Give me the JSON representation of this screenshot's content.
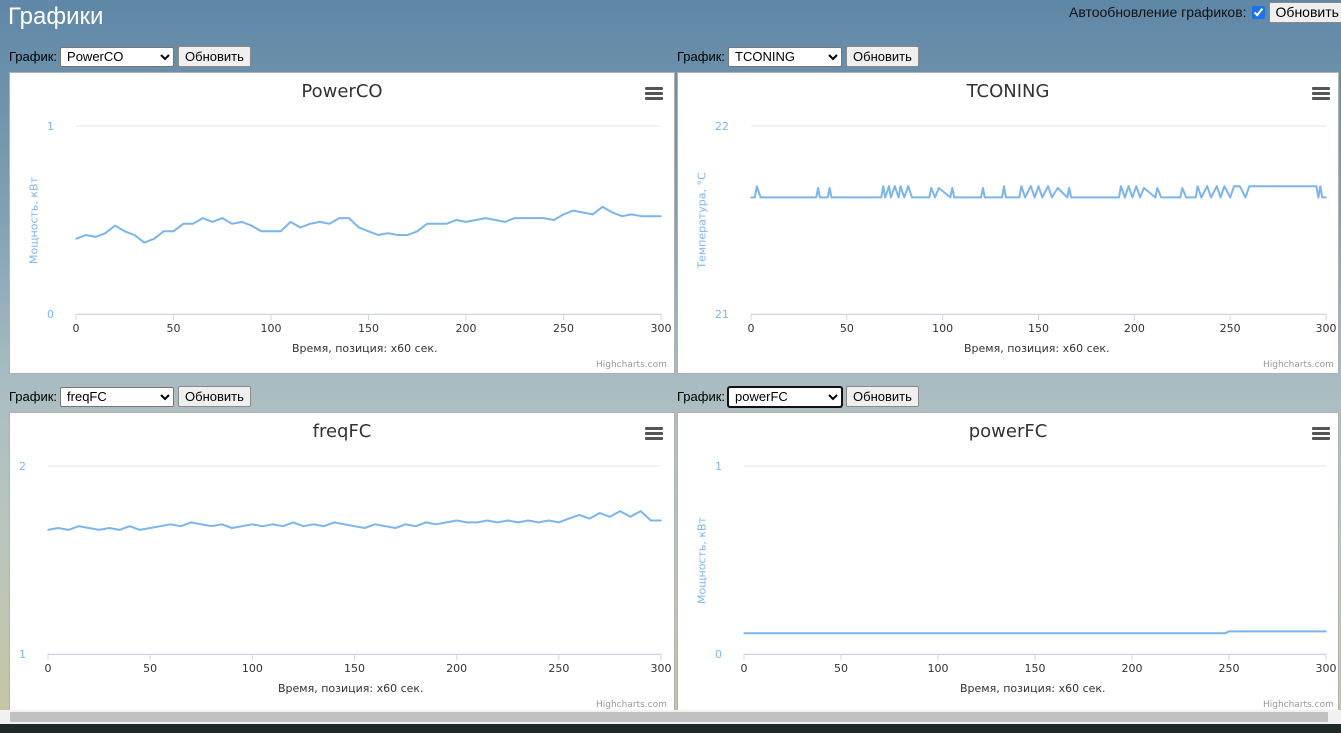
{
  "header": {
    "title": "Графики",
    "auto_label": "Автообновление графиков:",
    "auto_checked": true,
    "auto_button": "Обновить г"
  },
  "colors": {
    "series": "#7cb5ec",
    "grid": "#e6e6e6",
    "title": "#333333"
  },
  "credits": "Highcharts.com",
  "x_axis_title": "Время, позиция: x60 сек.",
  "panels": [
    {
      "control_label": "График:",
      "selected": "PowerCO",
      "button": "Обновить",
      "title": "PowerCO",
      "y_title": "Мощность, кВт",
      "menu_icon": "hamburger-menu-icon"
    },
    {
      "control_label": "График:",
      "selected": "TCONING",
      "button": "Обновить",
      "title": "TCONING",
      "y_title": "Температура, °C",
      "menu_icon": "hamburger-menu-icon"
    },
    {
      "control_label": "График:",
      "selected": "freqFC",
      "button": "Обновить",
      "title": "freqFC",
      "y_title": "",
      "menu_icon": "hamburger-menu-icon"
    },
    {
      "control_label": "График:",
      "selected": "powerFC",
      "button": "Обновить",
      "title": "powerFC",
      "y_title": "Мощность, кВт",
      "menu_icon": "hamburger-menu-icon"
    }
  ],
  "chart_data": [
    {
      "type": "line",
      "title": "PowerCO",
      "xlabel": "Время, позиция: x60 сек.",
      "ylabel": "Мощность, кВт",
      "xlim": [
        0,
        300
      ],
      "ylim": [
        0,
        1
      ],
      "x_ticks": [
        0,
        50,
        100,
        150,
        200,
        250,
        300
      ],
      "y_ticks": [
        0,
        1
      ],
      "grid": true,
      "legend": "none",
      "series": [
        {
          "x": [
            0,
            5,
            10,
            15,
            20,
            25,
            30,
            35,
            40,
            45,
            50,
            55,
            60,
            65,
            70,
            75,
            80,
            85,
            90,
            95,
            100,
            105,
            110,
            115,
            120,
            125,
            130,
            135,
            140,
            145,
            150,
            155,
            160,
            165,
            170,
            175,
            180,
            185,
            190,
            195,
            200,
            205,
            210,
            215,
            220,
            225,
            230,
            235,
            240,
            245,
            250,
            255,
            260,
            265,
            270,
            275,
            280,
            285,
            290,
            295,
            300
          ],
          "values": [
            0.4,
            0.42,
            0.41,
            0.43,
            0.47,
            0.44,
            0.42,
            0.38,
            0.4,
            0.44,
            0.44,
            0.48,
            0.48,
            0.51,
            0.49,
            0.51,
            0.48,
            0.49,
            0.47,
            0.44,
            0.44,
            0.44,
            0.49,
            0.46,
            0.48,
            0.49,
            0.48,
            0.51,
            0.51,
            0.46,
            0.44,
            0.42,
            0.43,
            0.42,
            0.42,
            0.44,
            0.48,
            0.48,
            0.48,
            0.5,
            0.49,
            0.5,
            0.51,
            0.5,
            0.49,
            0.51,
            0.51,
            0.51,
            0.51,
            0.5,
            0.53,
            0.55,
            0.54,
            0.53,
            0.57,
            0.54,
            0.52,
            0.53,
            0.52,
            0.52,
            0.52
          ]
        }
      ]
    },
    {
      "type": "line",
      "title": "TCONING",
      "xlabel": "Время, позиция: x60 сек.",
      "ylabel": "Температура, °C",
      "xlim": [
        0,
        300
      ],
      "ylim": [
        21,
        22
      ],
      "x_ticks": [
        0,
        50,
        100,
        150,
        200,
        250,
        300
      ],
      "y_ticks": [
        21,
        22
      ],
      "grid": true,
      "legend": "none",
      "series": [
        {
          "x": [
            0,
            2,
            3,
            5,
            34,
            35,
            36,
            40,
            41,
            42,
            68,
            69,
            70,
            72,
            73,
            75,
            77,
            78,
            80,
            82,
            84,
            93,
            94,
            96,
            98,
            104,
            105,
            106,
            120,
            121,
            122,
            131,
            132,
            133,
            140,
            141,
            143,
            146,
            148,
            150,
            152,
            155,
            157,
            160,
            165,
            166,
            167,
            192,
            193,
            195,
            197,
            199,
            201,
            203,
            205,
            211,
            212,
            214,
            224,
            225,
            227,
            232,
            233,
            235,
            238,
            240,
            243,
            245,
            247,
            250,
            252,
            255,
            258,
            260,
            262,
            265,
            270,
            275,
            280,
            285,
            290,
            295,
            296,
            297,
            298,
            300
          ],
          "values": [
            21.62,
            21.62,
            21.68,
            21.62,
            21.62,
            21.67,
            21.62,
            21.62,
            21.67,
            21.62,
            21.62,
            21.68,
            21.62,
            21.68,
            21.62,
            21.68,
            21.62,
            21.68,
            21.62,
            21.68,
            21.62,
            21.62,
            21.67,
            21.62,
            21.67,
            21.62,
            21.67,
            21.62,
            21.62,
            21.67,
            21.62,
            21.62,
            21.68,
            21.62,
            21.62,
            21.68,
            21.62,
            21.68,
            21.62,
            21.68,
            21.62,
            21.68,
            21.62,
            21.67,
            21.62,
            21.67,
            21.62,
            21.62,
            21.68,
            21.62,
            21.68,
            21.62,
            21.68,
            21.62,
            21.67,
            21.62,
            21.67,
            21.62,
            21.62,
            21.67,
            21.62,
            21.62,
            21.68,
            21.62,
            21.68,
            21.62,
            21.68,
            21.62,
            21.68,
            21.62,
            21.68,
            21.68,
            21.62,
            21.68,
            21.68,
            21.68,
            21.68,
            21.68,
            21.68,
            21.68,
            21.68,
            21.68,
            21.62,
            21.68,
            21.62,
            21.62
          ]
        }
      ]
    },
    {
      "type": "line",
      "title": "freqFC",
      "xlabel": "Время, позиция: x60 сек.",
      "ylabel": "",
      "xlim": [
        0,
        300
      ],
      "ylim": [
        1,
        2
      ],
      "x_ticks": [
        0,
        50,
        100,
        150,
        200,
        250,
        300
      ],
      "y_ticks": [
        1,
        2
      ],
      "grid": true,
      "legend": "none",
      "series": [
        {
          "x": [
            0,
            5,
            10,
            15,
            20,
            25,
            30,
            35,
            40,
            45,
            50,
            55,
            60,
            65,
            70,
            75,
            80,
            85,
            90,
            95,
            100,
            105,
            110,
            115,
            120,
            125,
            130,
            135,
            140,
            145,
            150,
            155,
            160,
            165,
            170,
            175,
            180,
            185,
            190,
            195,
            200,
            205,
            210,
            215,
            220,
            225,
            230,
            235,
            240,
            245,
            250,
            255,
            260,
            265,
            270,
            275,
            280,
            285,
            290,
            295,
            300
          ],
          "values": [
            1.66,
            1.67,
            1.66,
            1.68,
            1.67,
            1.66,
            1.67,
            1.66,
            1.68,
            1.66,
            1.67,
            1.68,
            1.69,
            1.68,
            1.7,
            1.69,
            1.68,
            1.69,
            1.67,
            1.68,
            1.69,
            1.68,
            1.69,
            1.68,
            1.7,
            1.68,
            1.69,
            1.68,
            1.7,
            1.69,
            1.68,
            1.67,
            1.69,
            1.68,
            1.67,
            1.69,
            1.68,
            1.7,
            1.69,
            1.7,
            1.71,
            1.7,
            1.7,
            1.71,
            1.7,
            1.71,
            1.7,
            1.71,
            1.7,
            1.71,
            1.7,
            1.72,
            1.74,
            1.72,
            1.75,
            1.73,
            1.76,
            1.73,
            1.76,
            1.71,
            1.71
          ]
        }
      ]
    },
    {
      "type": "line",
      "title": "powerFC",
      "xlabel": "Время, позиция: x60 сек.",
      "ylabel": "Мощность, кВт",
      "xlim": [
        0,
        300
      ],
      "ylim": [
        0,
        1
      ],
      "x_ticks": [
        0,
        50,
        100,
        150,
        200,
        250,
        300
      ],
      "y_ticks": [
        0,
        1
      ],
      "grid": true,
      "legend": "none",
      "series": [
        {
          "x": [
            0,
            248,
            250,
            300
          ],
          "values": [
            0.11,
            0.11,
            0.12,
            0.12
          ]
        }
      ]
    }
  ]
}
